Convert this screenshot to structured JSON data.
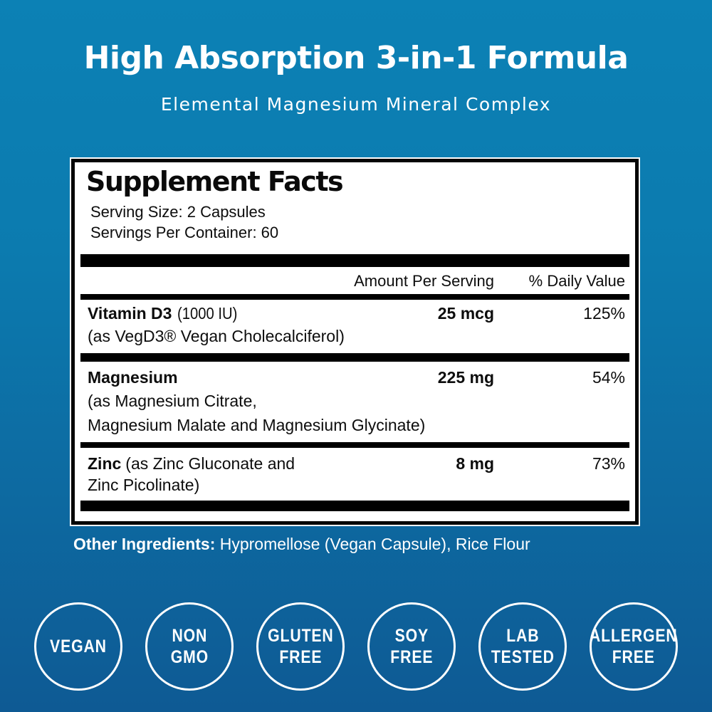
{
  "header": {
    "title": "High Absorption 3-in-1 Formula",
    "subtitle": "Elemental Magnesium Mineral Complex"
  },
  "panel": {
    "title": "Supplement Facts",
    "serving_size": "Serving Size: 2 Capsules",
    "servings_per_container": "Servings Per Container: 60",
    "columns": {
      "amount": "Amount Per Serving",
      "daily_value": "% Daily Value"
    },
    "rows": [
      {
        "name": "Vitamin D3",
        "name_suffix": "(1000 IU)",
        "detail": "(as VegD3® Vegan Cholecalciferol)",
        "amount": "25 mcg",
        "dv": "125%"
      },
      {
        "name": "Magnesium",
        "detail": "(as Magnesium Citrate,",
        "detail2": "Magnesium Malate and Magnesium Glycinate)",
        "amount": "225 mg",
        "dv": "54%"
      },
      {
        "name": "Zinc",
        "name_suffix": "(as Zinc Gluconate and",
        "detail": "Zinc Picolinate)",
        "amount": "8 mg",
        "dv": "73%"
      }
    ]
  },
  "other_ingredients": {
    "label": "Other Ingredients:",
    "value": "Hypromellose (Vegan Capsule), Rice Flour"
  },
  "badges": [
    {
      "line1": "VEGAN"
    },
    {
      "line1": "NON",
      "line2": "GMO"
    },
    {
      "line1": "GLUTEN",
      "line2": "FREE"
    },
    {
      "line1": "SOY",
      "line2": "FREE"
    },
    {
      "line1": "LAB",
      "line2": "TESTED"
    },
    {
      "line1": "ALLERGEN",
      "line2": "FREE"
    }
  ],
  "colors": {
    "background_top": "#0C81B5",
    "background_bottom": "#0E5A94",
    "panel_background": "#FFFFFF",
    "panel_border": "#050505",
    "text_dark": "#0D0D0D",
    "text_light": "#FFFFFF"
  }
}
